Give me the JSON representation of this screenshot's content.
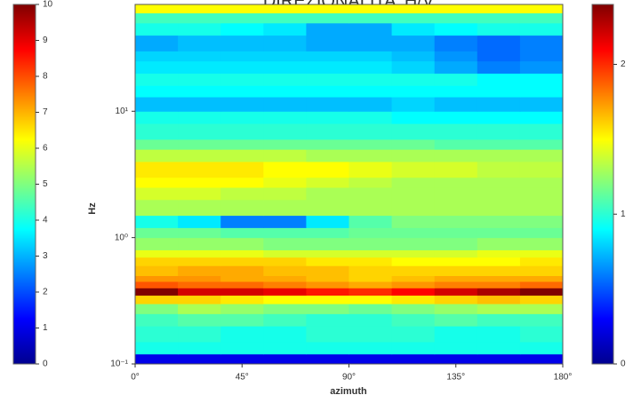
{
  "chart_data": {
    "type": "heatmap",
    "title": "DIREZIONALITA' H/V",
    "xlabel": "azimuth",
    "ylabel": "Hz",
    "xlim": [
      0,
      180
    ],
    "xticks": [
      {
        "value": 0,
        "label": "0°"
      },
      {
        "value": 45,
        "label": "45°"
      },
      {
        "value": 90,
        "label": "90°"
      },
      {
        "value": 135,
        "label": "135°"
      },
      {
        "value": 180,
        "label": "180°"
      }
    ],
    "ylim": [
      0.1,
      70
    ],
    "ylog": true,
    "yticks": [
      {
        "value": 0.1,
        "label": "10⁻¹"
      },
      {
        "value": 1,
        "label": "10⁰"
      },
      {
        "value": 10,
        "label": "10¹"
      }
    ],
    "xbins": [
      0,
      18,
      36,
      54,
      72,
      90,
      108,
      126,
      144,
      162,
      180
    ],
    "ybins": [
      0.1,
      0.12,
      0.15,
      0.2,
      0.25,
      0.3,
      0.35,
      0.4,
      0.45,
      0.5,
      0.6,
      0.7,
      0.8,
      1,
      1.2,
      1.5,
      2,
      2.5,
      3,
      4,
      5,
      6,
      8,
      10,
      13,
      16,
      20,
      25,
      30,
      40,
      50,
      60,
      70
    ],
    "z": [
      [
        0.25,
        0.25,
        0.25,
        0.25,
        0.25,
        0.25,
        0.25,
        0.25,
        0.25,
        0.25
      ],
      [
        0.95,
        0.95,
        0.95,
        0.95,
        0.95,
        0.95,
        0.95,
        0.95,
        0.95,
        0.95
      ],
      [
        1.0,
        1.0,
        0.95,
        0.95,
        1.0,
        1.0,
        1.0,
        0.95,
        0.95,
        1.0
      ],
      [
        1.05,
        1.1,
        1.1,
        1.05,
        1.0,
        1.0,
        1.05,
        1.1,
        1.05,
        1.05
      ],
      [
        1.2,
        1.3,
        1.25,
        1.2,
        1.2,
        1.15,
        1.2,
        1.25,
        1.3,
        1.3
      ],
      [
        1.6,
        1.6,
        1.55,
        1.5,
        1.5,
        1.5,
        1.55,
        1.6,
        1.65,
        1.6
      ],
      [
        2.4,
        2.2,
        2.2,
        2.15,
        2.05,
        2.0,
        2.1,
        2.2,
        2.3,
        2.4
      ],
      [
        1.9,
        1.85,
        1.85,
        1.8,
        1.75,
        1.7,
        1.75,
        1.8,
        1.8,
        1.85
      ],
      [
        1.75,
        1.75,
        1.7,
        1.7,
        1.65,
        1.6,
        1.65,
        1.7,
        1.7,
        1.7
      ],
      [
        1.65,
        1.7,
        1.7,
        1.65,
        1.65,
        1.6,
        1.6,
        1.6,
        1.6,
        1.6
      ],
      [
        1.6,
        1.6,
        1.6,
        1.6,
        1.55,
        1.55,
        1.5,
        1.5,
        1.5,
        1.55
      ],
      [
        1.45,
        1.45,
        1.45,
        1.4,
        1.4,
        1.4,
        1.4,
        1.4,
        1.45,
        1.45
      ],
      [
        1.25,
        1.25,
        1.25,
        1.2,
        1.2,
        1.2,
        1.2,
        1.2,
        1.25,
        1.25
      ],
      [
        1.15,
        1.15,
        1.1,
        1.1,
        1.1,
        1.15,
        1.15,
        1.15,
        1.15,
        1.15
      ],
      [
        0.95,
        0.85,
        0.6,
        0.6,
        0.85,
        1.1,
        1.2,
        1.2,
        1.2,
        1.2
      ],
      [
        1.3,
        1.3,
        1.3,
        1.3,
        1.3,
        1.3,
        1.3,
        1.3,
        1.3,
        1.3
      ],
      [
        1.4,
        1.4,
        1.35,
        1.35,
        1.3,
        1.3,
        1.3,
        1.3,
        1.3,
        1.3
      ],
      [
        1.5,
        1.5,
        1.5,
        1.45,
        1.4,
        1.35,
        1.3,
        1.3,
        1.3,
        1.3
      ],
      [
        1.55,
        1.55,
        1.55,
        1.5,
        1.5,
        1.45,
        1.4,
        1.4,
        1.35,
        1.35
      ],
      [
        1.35,
        1.35,
        1.35,
        1.35,
        1.3,
        1.3,
        1.3,
        1.3,
        1.3,
        1.3
      ],
      [
        1.15,
        1.15,
        1.15,
        1.15,
        1.15,
        1.15,
        1.15,
        1.1,
        1.1,
        1.1
      ],
      [
        1.0,
        1.0,
        1.0,
        1.0,
        1.0,
        1.0,
        1.0,
        1.0,
        1.0,
        1.0
      ],
      [
        0.95,
        0.95,
        0.95,
        0.95,
        0.95,
        0.95,
        0.9,
        0.9,
        0.9,
        0.9
      ],
      [
        0.75,
        0.75,
        0.75,
        0.75,
        0.75,
        0.75,
        0.8,
        0.75,
        0.75,
        0.75
      ],
      [
        0.9,
        0.9,
        0.9,
        0.9,
        0.9,
        0.9,
        0.9,
        0.9,
        0.9,
        0.9
      ],
      [
        0.95,
        0.95,
        0.95,
        0.95,
        0.95,
        0.95,
        0.95,
        0.95,
        0.9,
        0.9
      ],
      [
        0.85,
        0.85,
        0.85,
        0.85,
        0.85,
        0.85,
        0.8,
        0.7,
        0.6,
        0.65
      ],
      [
        0.8,
        0.8,
        0.8,
        0.8,
        0.8,
        0.8,
        0.75,
        0.65,
        0.55,
        0.6
      ],
      [
        0.7,
        0.75,
        0.75,
        0.75,
        0.7,
        0.7,
        0.7,
        0.6,
        0.55,
        0.6
      ],
      [
        0.95,
        0.95,
        0.9,
        0.85,
        0.7,
        0.7,
        0.85,
        0.9,
        0.95,
        0.95
      ],
      [
        1.05,
        1.05,
        1.05,
        1.05,
        1.05,
        1.05,
        1.05,
        1.05,
        1.05,
        1.05
      ],
      [
        1.5,
        1.5,
        1.5,
        1.5,
        1.5,
        1.5,
        1.5,
        1.5,
        1.5,
        1.5
      ]
    ],
    "colorbar_left": {
      "lim": [
        0,
        10
      ],
      "ticks": [
        0,
        1,
        2,
        3,
        4,
        5,
        6,
        7,
        8,
        9,
        10
      ]
    },
    "colorbar": {
      "lim": [
        0,
        2.4
      ],
      "ticks": [
        0,
        1,
        2
      ]
    },
    "colormap": "jet"
  }
}
